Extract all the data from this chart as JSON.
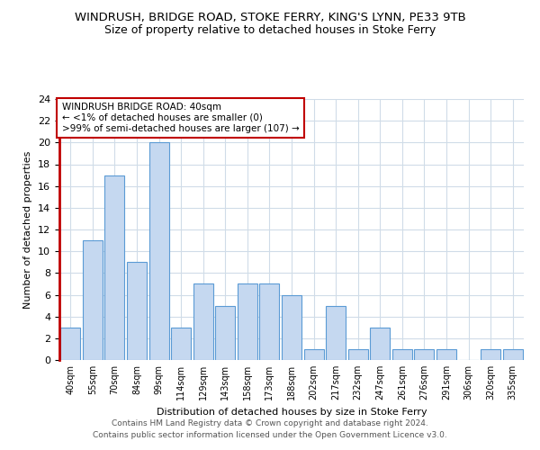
{
  "title": "WINDRUSH, BRIDGE ROAD, STOKE FERRY, KING'S LYNN, PE33 9TB",
  "subtitle": "Size of property relative to detached houses in Stoke Ferry",
  "xlabel": "Distribution of detached houses by size in Stoke Ferry",
  "ylabel": "Number of detached properties",
  "categories": [
    "40sqm",
    "55sqm",
    "70sqm",
    "84sqm",
    "99sqm",
    "114sqm",
    "129sqm",
    "143sqm",
    "158sqm",
    "173sqm",
    "188sqm",
    "202sqm",
    "217sqm",
    "232sqm",
    "247sqm",
    "261sqm",
    "276sqm",
    "291sqm",
    "306sqm",
    "320sqm",
    "335sqm"
  ],
  "values": [
    3,
    11,
    17,
    9,
    20,
    3,
    7,
    5,
    7,
    7,
    6,
    1,
    5,
    1,
    3,
    1,
    1,
    1,
    0,
    1,
    1
  ],
  "bar_color": "#c5d8f0",
  "bar_edge_color": "#5b9bd5",
  "highlight_color": "#c00000",
  "ylim": [
    0,
    24
  ],
  "yticks": [
    0,
    2,
    4,
    6,
    8,
    10,
    12,
    14,
    16,
    18,
    20,
    22,
    24
  ],
  "annotation_text": "WINDRUSH BRIDGE ROAD: 40sqm\n← <1% of detached houses are smaller (0)\n>99% of semi-detached houses are larger (107) →",
  "annotation_box_color": "#ffffff",
  "annotation_box_edge": "#c00000",
  "footer1": "Contains HM Land Registry data © Crown copyright and database right 2024.",
  "footer2": "Contains public sector information licensed under the Open Government Licence v3.0.",
  "bg_color": "#ffffff",
  "grid_color": "#d0dce8"
}
